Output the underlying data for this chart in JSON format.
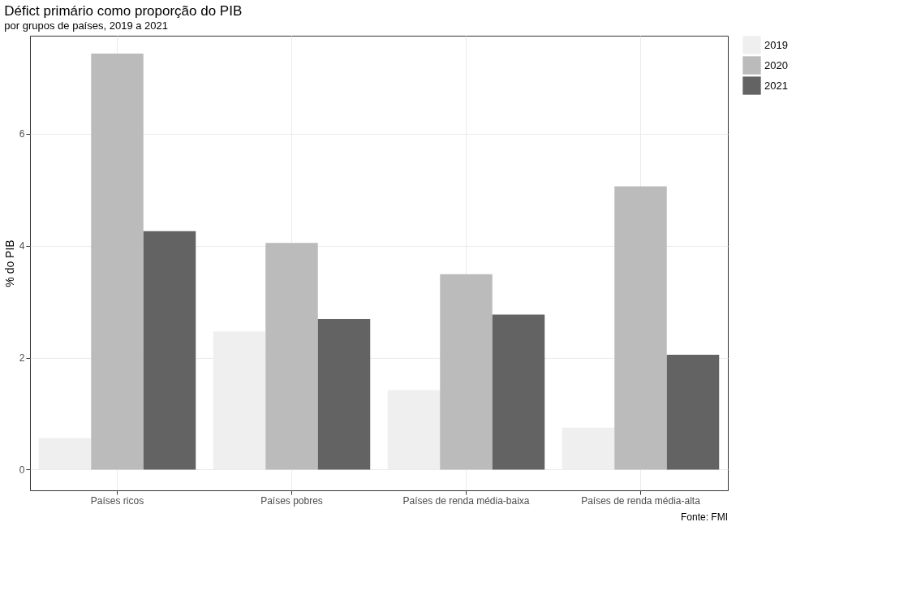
{
  "chart_data": {
    "type": "bar",
    "title": "Défict primário como proporção do PIB",
    "subtitle": "por grupos de países, 2019 a 2021",
    "ylabel": "% do PIB",
    "categories": [
      "Países ricos",
      "Países pobres",
      "Países de renda média-baixa",
      "Países de renda média-alta"
    ],
    "series": [
      {
        "name": "2019",
        "color": "#efefef",
        "values": [
          0.56,
          2.47,
          1.42,
          0.75
        ]
      },
      {
        "name": "2020",
        "color": "#bbbbbb",
        "values": [
          7.43,
          4.05,
          3.49,
          5.06
        ]
      },
      {
        "name": "2021",
        "color": "#636363",
        "values": [
          4.26,
          2.69,
          2.77,
          2.05
        ]
      }
    ],
    "ylim": [
      -0.37,
      7.75
    ],
    "yticks": [
      0,
      2,
      4,
      6
    ],
    "grid": true,
    "legend": "right",
    "annotations": [
      "Fonte: FMI"
    ]
  }
}
